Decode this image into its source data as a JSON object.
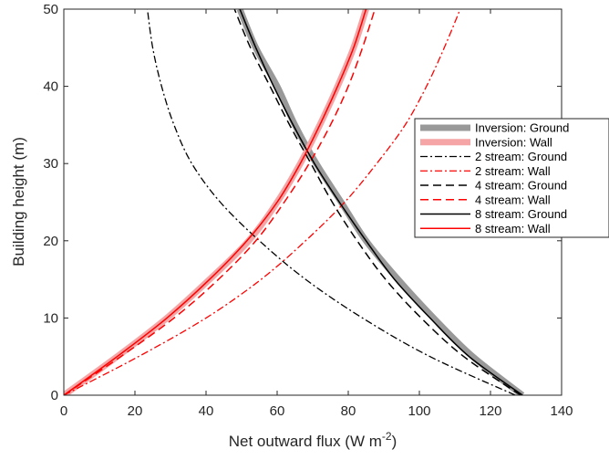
{
  "chart_data": {
    "type": "line",
    "title": "",
    "xlabel": "Net outward flux (W m",
    "xlabel_sup": "-2",
    "xlabel_close": ")",
    "ylabel": "Building height (m)",
    "xlim": [
      0,
      140
    ],
    "ylim": [
      0,
      50
    ],
    "xticks": [
      0,
      20,
      40,
      60,
      80,
      100,
      120,
      140
    ],
    "yticks": [
      0,
      10,
      20,
      30,
      40,
      50
    ],
    "grid": false,
    "legend_position": "right",
    "series": [
      {
        "name": "Inversion: Ground",
        "color": "#999999",
        "style": "thick",
        "y": [
          0,
          5,
          10,
          15,
          20,
          25,
          30,
          35,
          40,
          45,
          50
        ],
        "x": [
          129,
          115,
          104,
          94,
          85,
          78,
          71,
          65,
          60,
          54,
          49.5
        ]
      },
      {
        "name": "Inversion: Wall",
        "color": "#f5a5a5",
        "style": "thick",
        "y": [
          0,
          5,
          10,
          15,
          20,
          25,
          30,
          35,
          40,
          45,
          50
        ],
        "x": [
          0,
          15,
          29,
          41,
          52,
          60,
          66.5,
          72,
          77,
          81.5,
          85
        ]
      },
      {
        "name": "2 stream: Ground",
        "color": "#000000",
        "style": "dashdot",
        "y": [
          0,
          5,
          10,
          15,
          20,
          25,
          30,
          35,
          40,
          45,
          50
        ],
        "x": [
          127,
          103,
          84,
          68,
          55,
          44,
          36,
          31,
          27.5,
          25,
          23.5
        ]
      },
      {
        "name": "2 stream: Wall",
        "color": "#ff0000",
        "style": "dashdot",
        "y": [
          0,
          5,
          10,
          15,
          20,
          25,
          30,
          35,
          40,
          45,
          50
        ],
        "x": [
          0,
          21,
          40,
          55.5,
          68,
          79,
          88,
          96,
          102,
          107,
          111.5
        ]
      },
      {
        "name": "4 stream: Ground",
        "color": "#000000",
        "style": "dashed",
        "y": [
          0,
          5,
          10,
          15,
          20,
          25,
          30,
          35,
          40,
          45,
          50
        ],
        "x": [
          128.5,
          112.5,
          100.5,
          90.5,
          82.5,
          75.5,
          69.5,
          63.5,
          58,
          52.5,
          48
        ]
      },
      {
        "name": "4 stream: Wall",
        "color": "#ff0000",
        "style": "dashed",
        "y": [
          0,
          5,
          10,
          15,
          20,
          25,
          30,
          35,
          40,
          45,
          50
        ],
        "x": [
          0,
          16,
          31,
          43.5,
          54,
          62,
          69,
          75,
          80,
          84,
          87.5
        ]
      },
      {
        "name": "8 stream: Ground",
        "color": "#000000",
        "style": "solid",
        "y": [
          0,
          5,
          10,
          15,
          20,
          25,
          30,
          35,
          40,
          45,
          50
        ],
        "x": [
          129,
          114,
          103,
          93,
          85,
          77.5,
          70.5,
          64.5,
          59,
          54,
          49.5
        ]
      },
      {
        "name": "8 stream: Wall",
        "color": "#ff0000",
        "style": "solid",
        "y": [
          0,
          5,
          10,
          15,
          20,
          25,
          30,
          35,
          40,
          45,
          50
        ],
        "x": [
          0,
          15,
          29,
          41,
          51.5,
          60,
          66.5,
          72,
          77,
          81.5,
          85
        ]
      }
    ]
  }
}
